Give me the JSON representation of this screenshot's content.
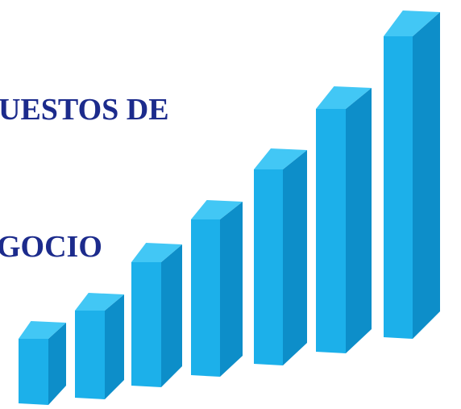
{
  "texts": {
    "line1": "UESTOS DE",
    "line2": "GOCIO"
  }
}
